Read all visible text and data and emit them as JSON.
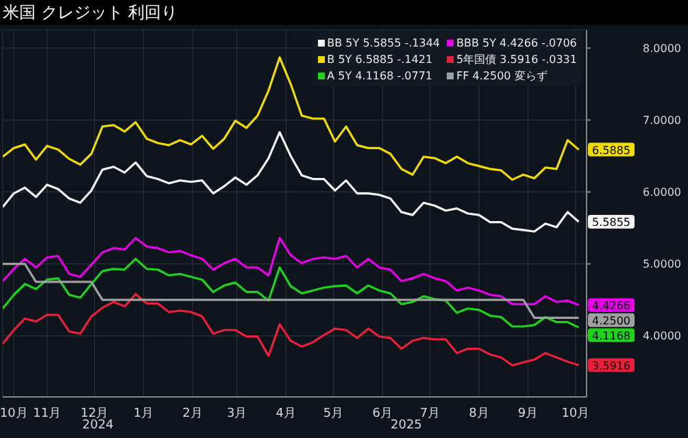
{
  "chart_data": {
    "type": "line",
    "title": "米国 クレジット 利回り",
    "x": [
      "2024-10-18",
      "2024-10-25",
      "2024-11-01",
      "2024-11-08",
      "2024-11-15",
      "2024-11-22",
      "2024-11-29",
      "2024-12-06",
      "2024-12-13",
      "2024-12-20",
      "2024-12-27",
      "2025-01-03",
      "2025-01-10",
      "2025-01-17",
      "2025-01-24",
      "2025-01-31",
      "2025-02-07",
      "2025-02-14",
      "2025-02-21",
      "2025-02-28",
      "2025-03-07",
      "2025-03-14",
      "2025-03-21",
      "2025-03-28",
      "2025-04-04",
      "2025-04-11",
      "2025-04-18",
      "2025-04-25",
      "2025-05-02",
      "2025-05-09",
      "2025-05-16",
      "2025-05-23",
      "2025-05-30",
      "2025-06-06",
      "2025-06-13",
      "2025-06-20",
      "2025-06-27",
      "2025-07-04",
      "2025-07-11",
      "2025-07-18",
      "2025-07-25",
      "2025-08-01",
      "2025-08-08",
      "2025-08-15",
      "2025-08-22",
      "2025-08-29",
      "2025-09-05",
      "2025-09-12",
      "2025-09-19",
      "2025-09-26",
      "2025-10-03",
      "2025-10-10",
      "2025-10-17"
    ],
    "series": [
      {
        "name": "BB 5Y 5.5855 -.1344",
        "color": "#f2f2f2",
        "values": [
          5.79,
          5.98,
          6.06,
          5.93,
          6.1,
          6.04,
          5.91,
          5.85,
          6.02,
          6.31,
          6.35,
          6.27,
          6.41,
          6.22,
          6.18,
          6.12,
          6.16,
          6.14,
          6.16,
          5.98,
          6.08,
          6.2,
          6.1,
          6.23,
          6.47,
          6.83,
          6.5,
          6.23,
          6.18,
          6.18,
          6.02,
          6.16,
          5.98,
          5.98,
          5.96,
          5.91,
          5.72,
          5.68,
          5.85,
          5.81,
          5.74,
          5.77,
          5.7,
          5.68,
          5.58,
          5.58,
          5.49,
          5.47,
          5.45,
          5.56,
          5.51,
          5.72,
          5.5855
        ],
        "value_labels": [
          null,
          null,
          null,
          null,
          null,
          null,
          null,
          null,
          null,
          null,
          null,
          null,
          null,
          null,
          null,
          null,
          null,
          null,
          null,
          null,
          null,
          null,
          null,
          null,
          null,
          null,
          null,
          null,
          null,
          null,
          null,
          null,
          null,
          null,
          null,
          null,
          null,
          null,
          null,
          null,
          null,
          null,
          null,
          null,
          null,
          null,
          null,
          null,
          null,
          null,
          null,
          null,
          "5.5855"
        ]
      },
      {
        "name": "B 5Y 6.5885 -.1421",
        "color": "#f0dc00",
        "values": [
          6.49,
          6.61,
          6.66,
          6.45,
          6.64,
          6.59,
          6.46,
          6.38,
          6.53,
          6.91,
          6.93,
          6.84,
          6.97,
          6.74,
          6.68,
          6.65,
          6.72,
          6.66,
          6.78,
          6.6,
          6.74,
          6.99,
          6.89,
          7.06,
          7.41,
          7.87,
          7.5,
          7.06,
          7.02,
          7.02,
          6.7,
          6.91,
          6.65,
          6.61,
          6.61,
          6.53,
          6.32,
          6.24,
          6.49,
          6.47,
          6.4,
          6.49,
          6.4,
          6.36,
          6.32,
          6.3,
          6.17,
          6.24,
          6.19,
          6.34,
          6.32,
          6.72,
          6.5885
        ],
        "value_labels": [
          null,
          null,
          null,
          null,
          null,
          null,
          null,
          null,
          null,
          null,
          null,
          null,
          null,
          null,
          null,
          null,
          null,
          null,
          null,
          null,
          null,
          null,
          null,
          null,
          null,
          null,
          null,
          null,
          null,
          null,
          null,
          null,
          null,
          null,
          null,
          null,
          null,
          null,
          null,
          null,
          null,
          null,
          null,
          null,
          null,
          null,
          null,
          null,
          null,
          null,
          null,
          null,
          "6.5885"
        ]
      },
      {
        "name": "A 5Y 4.1168 -.0771",
        "color": "#1ed21e",
        "values": [
          4.38,
          4.57,
          4.72,
          4.65,
          4.78,
          4.8,
          4.57,
          4.53,
          4.72,
          4.9,
          4.93,
          4.92,
          5.07,
          4.93,
          4.92,
          4.84,
          4.86,
          4.82,
          4.78,
          4.61,
          4.7,
          4.74,
          4.61,
          4.61,
          4.49,
          4.95,
          4.69,
          4.59,
          4.63,
          4.67,
          4.69,
          4.7,
          4.59,
          4.7,
          4.63,
          4.59,
          4.44,
          4.47,
          4.55,
          4.51,
          4.49,
          4.32,
          4.38,
          4.36,
          4.28,
          4.26,
          4.13,
          4.13,
          4.15,
          4.26,
          4.19,
          4.19,
          4.1168
        ],
        "value_labels": [
          null,
          null,
          null,
          null,
          null,
          null,
          null,
          null,
          null,
          null,
          null,
          null,
          null,
          null,
          null,
          null,
          null,
          null,
          null,
          null,
          null,
          null,
          null,
          null,
          null,
          null,
          null,
          null,
          null,
          null,
          null,
          null,
          null,
          null,
          null,
          null,
          null,
          null,
          null,
          null,
          null,
          null,
          null,
          null,
          null,
          null,
          null,
          null,
          null,
          null,
          null,
          null,
          "4.1168"
        ]
      },
      {
        "name": "BBB 5Y 4.4266 -.0706",
        "color": "#e600e6",
        "values": [
          4.76,
          4.93,
          5.07,
          4.95,
          5.09,
          5.11,
          4.86,
          4.82,
          4.99,
          5.16,
          5.22,
          5.2,
          5.36,
          5.24,
          5.22,
          5.16,
          5.18,
          5.12,
          5.07,
          4.92,
          5.01,
          5.07,
          4.95,
          4.95,
          4.84,
          5.36,
          5.12,
          5.01,
          5.07,
          5.09,
          5.07,
          5.11,
          4.95,
          5.07,
          4.95,
          4.92,
          4.76,
          4.8,
          4.86,
          4.8,
          4.76,
          4.63,
          4.67,
          4.63,
          4.57,
          4.55,
          4.44,
          4.44,
          4.44,
          4.55,
          4.47,
          4.49,
          4.4266
        ],
        "value_labels": [
          null,
          null,
          null,
          null,
          null,
          null,
          null,
          null,
          null,
          null,
          null,
          null,
          null,
          null,
          null,
          null,
          null,
          null,
          null,
          null,
          null,
          null,
          null,
          null,
          null,
          null,
          null,
          null,
          null,
          null,
          null,
          null,
          null,
          null,
          null,
          null,
          null,
          null,
          null,
          null,
          null,
          null,
          null,
          null,
          null,
          null,
          null,
          null,
          null,
          null,
          null,
          null,
          "4.4266"
        ]
      },
      {
        "name": "5年国債 3.5916 -.0331",
        "color": "#e8203c",
        "values": [
          3.89,
          4.08,
          4.24,
          4.2,
          4.29,
          4.29,
          4.06,
          4.03,
          4.27,
          4.39,
          4.47,
          4.41,
          4.58,
          4.45,
          4.45,
          4.33,
          4.35,
          4.33,
          4.27,
          4.03,
          4.08,
          4.08,
          3.99,
          3.99,
          3.72,
          4.16,
          3.93,
          3.85,
          3.91,
          4.01,
          4.1,
          4.08,
          3.97,
          4.1,
          3.99,
          3.97,
          3.82,
          3.93,
          3.97,
          3.95,
          3.95,
          3.76,
          3.82,
          3.82,
          3.74,
          3.7,
          3.59,
          3.63,
          3.67,
          3.76,
          3.7,
          3.64,
          3.5916
        ],
        "value_labels": [
          null,
          null,
          null,
          null,
          null,
          null,
          null,
          null,
          null,
          null,
          null,
          null,
          null,
          null,
          null,
          null,
          null,
          null,
          null,
          null,
          null,
          null,
          null,
          null,
          null,
          null,
          null,
          null,
          null,
          null,
          null,
          null,
          null,
          null,
          null,
          null,
          null,
          null,
          null,
          null,
          null,
          null,
          null,
          null,
          null,
          null,
          null,
          null,
          null,
          null,
          null,
          null,
          "3.5916"
        ]
      },
      {
        "name": "FF 4.2500 変らず",
        "color": "#a0a0a0",
        "values": [
          5.0,
          5.0,
          5.0,
          4.75,
          4.75,
          4.75,
          4.75,
          4.75,
          4.75,
          4.5,
          4.5,
          4.5,
          4.5,
          4.5,
          4.5,
          4.5,
          4.5,
          4.5,
          4.5,
          4.5,
          4.5,
          4.5,
          4.5,
          4.5,
          4.5,
          4.5,
          4.5,
          4.5,
          4.5,
          4.5,
          4.5,
          4.5,
          4.5,
          4.5,
          4.5,
          4.5,
          4.5,
          4.5,
          4.5,
          4.5,
          4.5,
          4.5,
          4.5,
          4.5,
          4.5,
          4.5,
          4.5,
          4.5,
          4.25,
          4.25,
          4.25,
          4.25,
          4.25
        ],
        "value_labels": [
          null,
          null,
          null,
          null,
          null,
          null,
          null,
          null,
          null,
          null,
          null,
          null,
          null,
          null,
          null,
          null,
          null,
          null,
          null,
          null,
          null,
          null,
          null,
          null,
          null,
          null,
          null,
          null,
          null,
          null,
          null,
          null,
          null,
          null,
          null,
          null,
          null,
          null,
          null,
          null,
          null,
          null,
          null,
          null,
          null,
          null,
          null,
          null,
          null,
          null,
          null,
          null,
          "4.2500"
        ]
      }
    ],
    "xlim": [
      "2024-10-18",
      "2025-10-22"
    ],
    "xticks": [
      {
        "value": "2024-10-25",
        "label": "10月"
      },
      {
        "value": "2024-11-15",
        "label": "11月"
      },
      {
        "value": "2024-12-15",
        "label": "12月"
      },
      {
        "value": "2025-01-15",
        "label": "1月"
      },
      {
        "value": "2025-02-15",
        "label": "2月"
      },
      {
        "value": "2025-03-15",
        "label": "3月"
      },
      {
        "value": "2025-04-15",
        "label": "4月"
      },
      {
        "value": "2025-05-15",
        "label": "5月"
      },
      {
        "value": "2025-06-15",
        "label": "6月"
      },
      {
        "value": "2025-07-15",
        "label": "7月"
      },
      {
        "value": "2025-08-15",
        "label": "8月"
      },
      {
        "value": "2025-09-15",
        "label": "9月"
      },
      {
        "value": "2025-10-15",
        "label": "10月"
      }
    ],
    "ylim": [
      3.15,
      8.25
    ],
    "yticks": [
      {
        "value": 4,
        "label": "4.0000"
      },
      {
        "value": 5,
        "label": "5.0000"
      },
      {
        "value": 6,
        "label": "6.0000"
      },
      {
        "value": 7,
        "label": "7.0000"
      },
      {
        "value": 8,
        "label": "8.0000"
      }
    ],
    "annotations": [
      "2024",
      "2025"
    ],
    "grid": true,
    "legend": "top right",
    "marker": "none",
    "line_style": "solid"
  }
}
